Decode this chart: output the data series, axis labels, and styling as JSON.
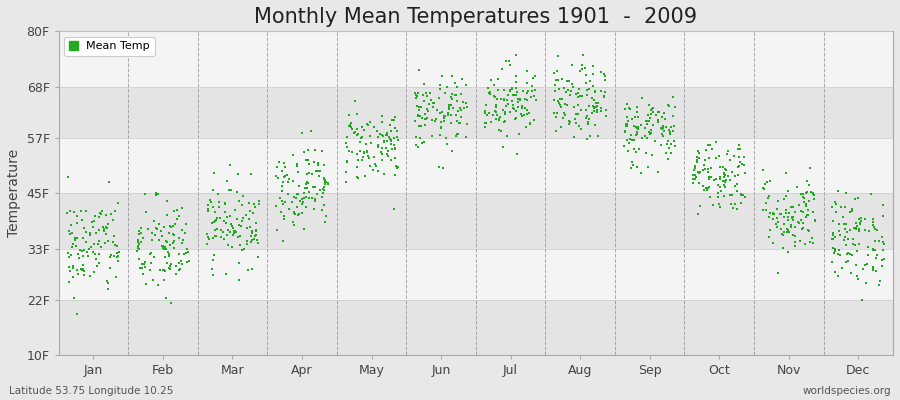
{
  "title": "Monthly Mean Temperatures 1901  -  2009",
  "ylabel": "Temperature",
  "bottom_left_text": "Latitude 53.75 Longitude 10.25",
  "bottom_right_text": "worldspecies.org",
  "legend_label": "Mean Temp",
  "ytick_labels": [
    "10F",
    "22F",
    "33F",
    "45F",
    "57F",
    "68F",
    "80F"
  ],
  "ytick_values": [
    10,
    22,
    33,
    45,
    57,
    68,
    80
  ],
  "months": [
    "Jan",
    "Feb",
    "Mar",
    "Apr",
    "May",
    "Jun",
    "Jul",
    "Aug",
    "Sep",
    "Oct",
    "Nov",
    "Dec"
  ],
  "dot_color": "#22aa22",
  "background_color": "#e8e8e8",
  "plot_bg_color": "#f4f4f4",
  "stripe_light": "#f4f4f4",
  "stripe_dark": "#e4e4e4",
  "grid_color": "#888888",
  "title_fontsize": 15,
  "axis_label_fontsize": 10,
  "tick_fontsize": 9,
  "dot_size": 3,
  "num_years": 109,
  "seed": 42,
  "monthly_means_F": [
    33.5,
    33.0,
    38.5,
    46.5,
    55.5,
    62.0,
    65.0,
    64.5,
    58.5,
    49.0,
    40.5,
    35.0
  ],
  "monthly_stds_F": [
    5.5,
    5.5,
    4.5,
    4.5,
    4.0,
    4.0,
    4.0,
    4.0,
    4.0,
    4.0,
    4.5,
    5.0
  ]
}
